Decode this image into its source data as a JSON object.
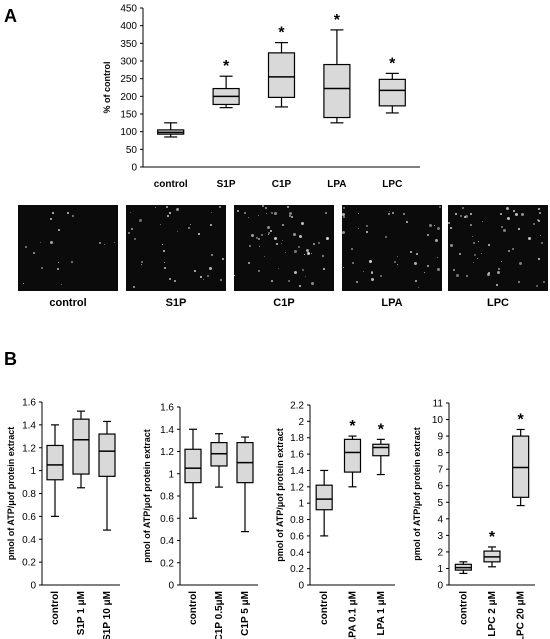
{
  "panels": {
    "a": "A",
    "b": "B"
  },
  "chart_data": [
    {
      "type": "box",
      "panel": "A",
      "ylabel": "% of control",
      "ylim": [
        0,
        450
      ],
      "yticks": [
        0,
        50,
        100,
        150,
        200,
        250,
        300,
        350,
        400,
        450
      ],
      "categories": [
        "control",
        "S1P",
        "C1P",
        "LPA",
        "LPC"
      ],
      "boxes": [
        {
          "min": 85,
          "q1": 93,
          "median": 98,
          "q3": 105,
          "max": 125,
          "sig": false
        },
        {
          "min": 168,
          "q1": 177,
          "median": 200,
          "q3": 222,
          "max": 257,
          "sig": true
        },
        {
          "min": 170,
          "q1": 197,
          "median": 255,
          "q3": 323,
          "max": 352,
          "sig": true
        },
        {
          "min": 125,
          "q1": 140,
          "median": 222,
          "q3": 290,
          "max": 388,
          "sig": true
        },
        {
          "min": 153,
          "q1": 173,
          "median": 217,
          "q3": 248,
          "max": 265,
          "sig": true
        }
      ],
      "significance_marker": "*",
      "grid": false
    },
    {
      "type": "box",
      "panel": "B1",
      "ylabel": "pmol of ATP/μof protein extract",
      "ylim": [
        0,
        1.6
      ],
      "yticks": [
        0,
        0.2,
        0.4,
        0.6,
        0.8,
        1,
        1.2,
        1.4,
        1.6
      ],
      "categories": [
        "control",
        "S1P 1 μM",
        "S1P 10 μM"
      ],
      "boxes": [
        {
          "min": 0.6,
          "q1": 0.92,
          "median": 1.05,
          "q3": 1.22,
          "max": 1.4,
          "sig": false
        },
        {
          "min": 0.85,
          "q1": 0.97,
          "median": 1.27,
          "q3": 1.45,
          "max": 1.52,
          "sig": false
        },
        {
          "min": 0.48,
          "q1": 0.95,
          "median": 1.17,
          "q3": 1.32,
          "max": 1.43,
          "sig": false
        }
      ]
    },
    {
      "type": "box",
      "panel": "B2",
      "ylabel": "pmol of ATP/μof protein extract",
      "ylim": [
        0,
        1.6
      ],
      "yticks": [
        0,
        0.2,
        0.4,
        0.6,
        0.8,
        1,
        1.2,
        1.4,
        1.6
      ],
      "categories": [
        "control",
        "C1P 0.5μM",
        "C1P 5 μM"
      ],
      "boxes": [
        {
          "min": 0.6,
          "q1": 0.92,
          "median": 1.05,
          "q3": 1.22,
          "max": 1.4,
          "sig": false
        },
        {
          "min": 0.88,
          "q1": 1.07,
          "median": 1.18,
          "q3": 1.28,
          "max": 1.36,
          "sig": false
        },
        {
          "min": 0.48,
          "q1": 0.92,
          "median": 1.1,
          "q3": 1.28,
          "max": 1.33,
          "sig": false
        }
      ]
    },
    {
      "type": "box",
      "panel": "B3",
      "ylabel": "pmol of ATP/μof protein extract",
      "ylim": [
        0,
        2.2
      ],
      "yticks": [
        0,
        0.2,
        0.4,
        0.6,
        0.8,
        1,
        1.2,
        1.4,
        1.6,
        1.8,
        2,
        2.2
      ],
      "categories": [
        "control",
        "LPA 0.1 μM",
        "LPA 1 μM"
      ],
      "boxes": [
        {
          "min": 0.6,
          "q1": 0.92,
          "median": 1.05,
          "q3": 1.22,
          "max": 1.4,
          "sig": false
        },
        {
          "min": 1.2,
          "q1": 1.38,
          "median": 1.62,
          "q3": 1.78,
          "max": 1.82,
          "sig": true
        },
        {
          "min": 1.35,
          "q1": 1.58,
          "median": 1.68,
          "q3": 1.72,
          "max": 1.78,
          "sig": true
        }
      ]
    },
    {
      "type": "box",
      "panel": "B4",
      "ylabel": "pmol of ATP/μof protein extract",
      "ylim": [
        0,
        11
      ],
      "yticks": [
        0,
        1,
        2,
        3,
        4,
        5,
        6,
        7,
        8,
        9,
        10,
        11
      ],
      "categories": [
        "control",
        "LPC 2 μM",
        "LPC 20 μM"
      ],
      "boxes": [
        {
          "min": 0.7,
          "q1": 0.9,
          "median": 1.05,
          "q3": 1.25,
          "max": 1.4,
          "sig": false
        },
        {
          "min": 1.1,
          "q1": 1.4,
          "median": 1.7,
          "q3": 2.05,
          "max": 2.3,
          "sig": true
        },
        {
          "min": 4.8,
          "q1": 5.3,
          "median": 7.1,
          "q3": 9.0,
          "max": 9.4,
          "sig": true
        }
      ]
    }
  ],
  "micrographs": {
    "labels": [
      "control",
      "S1P",
      "C1P",
      "LPA",
      "LPC"
    ],
    "relative_cell_density": [
      0.25,
      0.5,
      0.8,
      0.6,
      0.75
    ]
  }
}
